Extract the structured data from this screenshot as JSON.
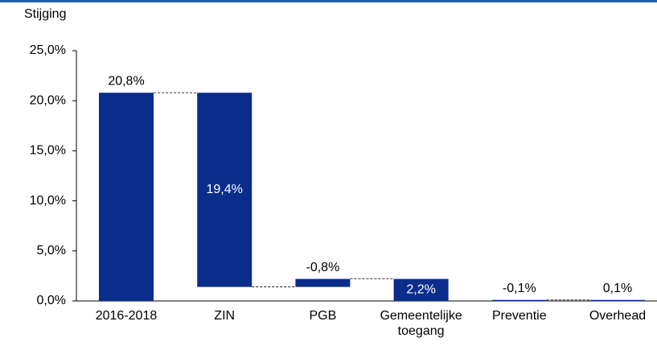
{
  "chart_data": {
    "type": "waterfall",
    "y_label": "Stijging",
    "categories": [
      "2016-2018",
      "ZIN",
      "PGB",
      "Gemeentelijke toegang",
      "Preventie",
      "Overhead"
    ],
    "values": [
      20.8,
      19.4,
      -0.8,
      2.2,
      -0.1,
      0.1
    ],
    "value_labels": [
      "20,8%",
      "19,4%",
      "-0,8%",
      "2,2%",
      "-0,1%",
      "0,1%"
    ],
    "color": "#0a2d8c",
    "ylim": [
      0,
      25
    ],
    "yticks": [
      {
        "value": 0,
        "label": "0,0%"
      },
      {
        "value": 5,
        "label": "5,0%"
      },
      {
        "value": 10,
        "label": "10,0%"
      },
      {
        "value": 15,
        "label": "15,0%"
      },
      {
        "value": 20,
        "label": "20,0%"
      },
      {
        "value": 25,
        "label": "25,0%"
      }
    ]
  }
}
